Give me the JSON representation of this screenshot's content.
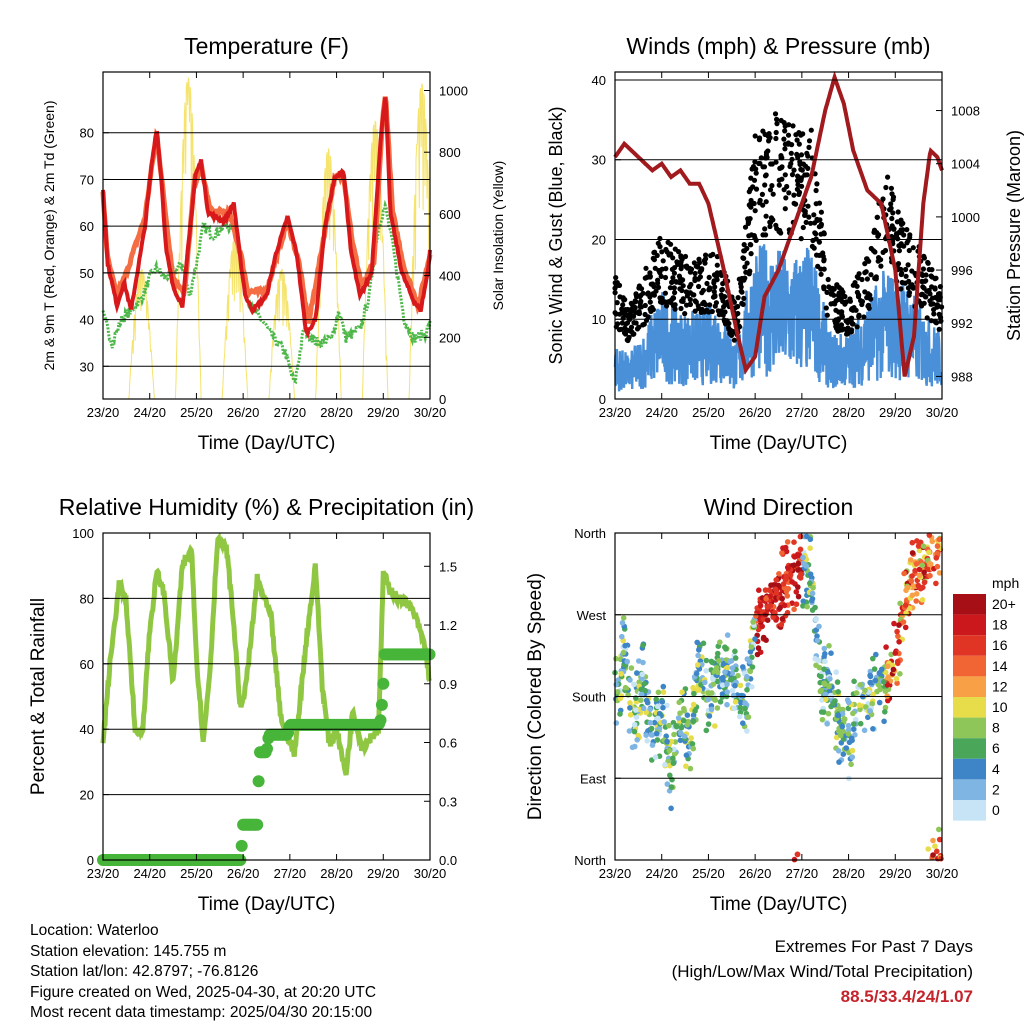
{
  "colors": {
    "t2m": "#d7191c",
    "t9m": "#f46d43",
    "td": "#4db849",
    "solar": "#f5e36b",
    "wind": "#4a90d9",
    "gust": "#000000",
    "pressure": "#a01a1e",
    "rh": "#8fc743",
    "precip": "#46b539",
    "extremes_text": "#c4242b"
  },
  "x_ticks": [
    "23/20",
    "24/20",
    "25/20",
    "26/20",
    "27/20",
    "28/20",
    "29/20",
    "30/20"
  ],
  "chart_data": [
    {
      "type": "line",
      "title": "Temperature (F)",
      "xlabel": "Time (Day/UTC)",
      "ylabel": "2m & 9m T (Red, Orange) & 2m Td (Green)",
      "y2label": "Solar Insolation (Yellow)",
      "ylim": [
        23,
        93
      ],
      "y_ticks": [
        30,
        40,
        50,
        60,
        70,
        80
      ],
      "y2lim": [
        0,
        1060
      ],
      "y2_ticks": [
        0,
        200,
        400,
        600,
        800,
        1000
      ],
      "grid": true,
      "x_unit": "days since 23/20",
      "series": [
        {
          "name": "2m T",
          "x": [
            0,
            0.1,
            0.3,
            0.45,
            0.6,
            0.9,
            1.05,
            1.15,
            1.25,
            1.35,
            1.5,
            1.7,
            1.85,
            1.98,
            2.1,
            2.25,
            2.4,
            2.6,
            2.8,
            2.95,
            3.05,
            3.2,
            3.5,
            3.7,
            3.95,
            4.15,
            4.35,
            4.55,
            4.75,
            4.95,
            5.15,
            5.3,
            5.5,
            5.75,
            5.9,
            5.97,
            6.05,
            6.15,
            6.4,
            6.65,
            6.8,
            6.95,
            7
          ],
          "y": [
            68,
            52,
            43,
            48,
            42,
            60,
            74,
            81,
            70,
            55,
            47,
            43,
            58,
            71,
            74,
            63,
            62,
            61,
            65,
            52,
            45,
            42,
            45,
            54,
            62,
            54,
            37,
            40,
            60,
            70,
            72,
            55,
            45,
            50,
            72,
            82,
            88,
            63,
            50,
            44,
            42,
            50,
            55
          ]
        },
        {
          "name": "9m T",
          "x": [
            0,
            0.1,
            0.3,
            0.5,
            0.9,
            1.05,
            1.15,
            1.3,
            1.5,
            1.75,
            1.95,
            2.1,
            2.3,
            2.7,
            2.95,
            3.1,
            3.5,
            3.7,
            3.95,
            4.2,
            4.4,
            4.75,
            4.95,
            5.15,
            5.35,
            5.55,
            5.8,
            6.0,
            6.05,
            6.2,
            6.45,
            6.75,
            7
          ],
          "y": [
            67,
            53,
            45,
            50,
            62,
            73,
            80,
            66,
            49,
            46,
            69,
            73,
            63,
            63,
            54,
            46,
            46,
            53,
            61,
            52,
            39,
            59,
            70,
            71,
            56,
            47,
            52,
            85,
            88,
            63,
            51,
            43,
            54
          ]
        },
        {
          "name": "2m Td",
          "x": [
            0,
            0.2,
            0.4,
            0.6,
            0.85,
            1.0,
            1.15,
            1.3,
            1.5,
            1.7,
            1.85,
            2.0,
            2.15,
            2.35,
            2.6,
            2.85,
            3.05,
            3.2,
            3.4,
            3.65,
            3.9,
            4.1,
            4.3,
            4.6,
            4.9,
            5.05,
            5.2,
            5.5,
            5.7,
            5.85,
            5.95,
            6.05,
            6.2,
            6.45,
            6.65,
            6.9,
            7
          ],
          "y": [
            41,
            35,
            40,
            42,
            45,
            49,
            51,
            49,
            50,
            52,
            45,
            52,
            60,
            58,
            60,
            60,
            46,
            42,
            40,
            36,
            33,
            26,
            38,
            35,
            36,
            42,
            36,
            38,
            45,
            57,
            62,
            64,
            56,
            40,
            36,
            37,
            39
          ]
        }
      ],
      "y2_series": {
        "name": "Solar Insolation",
        "days": [
          0,
          1,
          2,
          3,
          4,
          5,
          6
        ],
        "daily_peak": [
          420,
          1040,
          520,
          420,
          810,
          900,
          1020
        ]
      }
    },
    {
      "type": "scatter",
      "title": "Winds (mph) & Pressure (mb)",
      "xlabel": "Time (Day/UTC)",
      "ylabel": "Sonic Wind & Gust (Blue, Black)",
      "y2label": "Station Pressure (Maroon)",
      "ylim": [
        0,
        41
      ],
      "y_ticks": [
        0,
        10,
        20,
        30,
        40
      ],
      "y2lim": [
        986.3,
        1010.9
      ],
      "y2_ticks": [
        988,
        992,
        996,
        1000,
        1004,
        1008
      ],
      "grid": true,
      "x_unit": "days since 23/20",
      "wind_envelope": {
        "x": [
          0,
          0.3,
          0.6,
          1.0,
          1.4,
          1.8,
          2.2,
          2.6,
          3.0,
          3.4,
          3.8,
          4.2,
          4.6,
          5.0,
          5.4,
          5.8,
          6.2,
          6.6,
          7.0
        ],
        "y": [
          5,
          4,
          6,
          10,
          8,
          8,
          9,
          5,
          14,
          14,
          13,
          14,
          6,
          6,
          9,
          12,
          11,
          8,
          6
        ]
      },
      "gust_envelope": {
        "x": [
          0,
          0.3,
          0.6,
          1.0,
          1.4,
          1.8,
          2.2,
          2.6,
          3.0,
          3.4,
          3.8,
          4.2,
          4.6,
          5.0,
          5.4,
          5.8,
          6.2,
          6.6,
          7.0
        ],
        "y": [
          12,
          9,
          12,
          16,
          14,
          14,
          14,
          9,
          26,
          28,
          27,
          26,
          12,
          10,
          14,
          22,
          17,
          14,
          11
        ]
      },
      "pressure": {
        "name": "Station Pressure",
        "x": [
          0,
          0.2,
          0.5,
          0.8,
          1.0,
          1.2,
          1.4,
          1.6,
          1.8,
          2.0,
          2.3,
          2.6,
          2.8,
          3.0,
          3.2,
          3.5,
          3.8,
          4.2,
          4.5,
          4.7,
          4.9,
          5.1,
          5.4,
          5.7,
          6.0,
          6.2,
          6.4,
          6.6,
          6.75,
          6.9,
          7
        ],
        "y": [
          1004.5,
          1005.5,
          1004.5,
          1003.5,
          1004.0,
          1003.0,
          1003.5,
          1002.5,
          1002.5,
          1001.0,
          996.5,
          991.5,
          988.5,
          989.5,
          994.0,
          996.0,
          999.0,
          1003.0,
          1008.0,
          1010.5,
          1008.5,
          1005.0,
          1002.0,
          1001.0,
          996.0,
          988.0,
          991.0,
          1001.0,
          1005.0,
          1004.5,
          1003.5
        ]
      }
    },
    {
      "type": "line",
      "title": "Relative Humidity (%) & Precipitation (in)",
      "xlabel": "Time (Day/UTC)",
      "ylabel": "Percent & Total Rainfall",
      "ylim": [
        0,
        100
      ],
      "y_ticks": [
        0,
        20,
        40,
        60,
        80,
        100
      ],
      "y2lim": [
        0,
        1.67
      ],
      "y2_ticks": [
        "0.0",
        "0.3",
        "0.6",
        "0.9",
        "1.2",
        "1.5"
      ],
      "grid": true,
      "x_unit": "days since 23/20",
      "series": [
        {
          "name": "Relative Humidity",
          "x": [
            0,
            0.15,
            0.35,
            0.5,
            0.7,
            0.85,
            1.0,
            1.15,
            1.3,
            1.5,
            1.7,
            1.9,
            2.0,
            2.15,
            2.3,
            2.45,
            2.65,
            2.8,
            2.95,
            3.1,
            3.3,
            3.6,
            3.8,
            4.1,
            4.35,
            4.55,
            4.7,
            4.85,
            5.0,
            5.2,
            5.35,
            5.55,
            5.75,
            5.9,
            6.0,
            6.1,
            6.3,
            6.5,
            6.7,
            6.9,
            7.0
          ],
          "y": [
            36,
            60,
            85,
            78,
            38,
            40,
            70,
            88,
            82,
            54,
            90,
            95,
            62,
            36,
            60,
            98,
            95,
            72,
            45,
            58,
            86,
            74,
            44,
            32,
            67,
            90,
            52,
            35,
            40,
            26,
            46,
            34,
            38,
            40,
            88,
            84,
            80,
            79,
            74,
            65,
            54
          ]
        },
        {
          "name": "Total Rainfall",
          "x": [
            0,
            2.95,
            3.0,
            3.3,
            3.35,
            3.5,
            3.55,
            3.95,
            4.0,
            5.9,
            5.95,
            6.0,
            6.03,
            7.0
          ],
          "y": [
            0,
            0,
            0.18,
            0.18,
            0.55,
            0.55,
            0.64,
            0.64,
            0.69,
            0.69,
            0.72,
            0.9,
            1.05,
            1.05
          ]
        }
      ]
    },
    {
      "type": "scatter",
      "title": "Wind Direction",
      "xlabel": "Time (Day/UTC)",
      "ylabel": "Direction (Colored By Speed)",
      "y_categories": [
        "North",
        "East",
        "South",
        "West",
        "North"
      ],
      "ylim": [
        0,
        360
      ],
      "grid": true,
      "x_unit": "days since 23/20",
      "direction_trace": {
        "x": [
          0,
          0.2,
          0.4,
          0.6,
          0.8,
          1.0,
          1.2,
          1.4,
          1.6,
          1.8,
          2.0,
          2.2,
          2.4,
          2.6,
          2.8,
          3.0,
          3.2,
          3.4,
          3.6,
          3.8,
          4.0,
          4.2,
          4.4,
          4.6,
          4.8,
          5.0,
          5.2,
          5.4,
          5.6,
          5.8,
          6.0,
          6.2,
          6.4,
          6.6,
          6.8,
          7.0
        ],
        "y": [
          175,
          230,
          150,
          200,
          140,
          160,
          100,
          160,
          130,
          220,
          170,
          200,
          210,
          190,
          170,
          270,
          275,
          285,
          300,
          320,
          325,
          310,
          200,
          190,
          150,
          130,
          175,
          180,
          185,
          200,
          220,
          280,
          310,
          320,
          340,
          355
        ]
      },
      "speed_legend": {
        "title": "mph",
        "labels": [
          "20+",
          "18",
          "16",
          "14",
          "12",
          "10",
          "8",
          "6",
          "4",
          "2",
          "0"
        ],
        "colors": [
          "#a50f15",
          "#cb181d",
          "#e03525",
          "#f16535",
          "#f8a046",
          "#e7dc4a",
          "#8ec65a",
          "#4aa75a",
          "#3d85c6",
          "#7fb5e3",
          "#c6e4f6"
        ]
      }
    }
  ],
  "info": {
    "location": "Location: Waterloo",
    "elevation": "Station elevation: 145.755 m",
    "latlon": "Station lat/lon: 42.8797; -76.8126",
    "created": "Figure created on Wed, 2025-04-30, at 20:20 UTC",
    "recent": "Most recent data timestamp: 2025/04/30 20:15:00"
  },
  "extremes": {
    "title": "Extremes For Past 7 Days",
    "subtitle": "(High/Low/Max Wind/Total Precipitation)",
    "values": "88.5/33.4/24/1.07"
  }
}
